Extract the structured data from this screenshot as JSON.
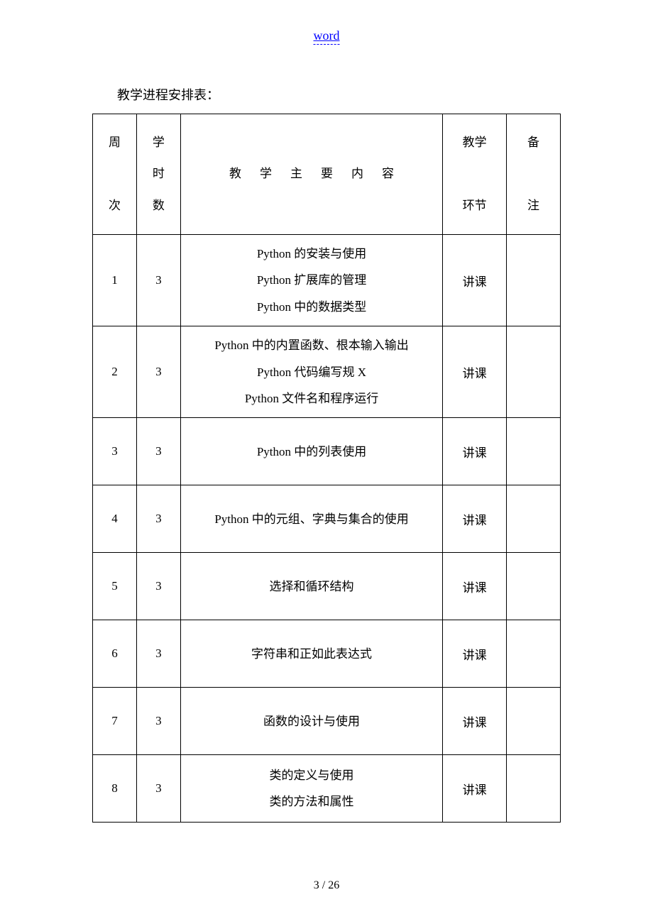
{
  "header": {
    "link_text": "word"
  },
  "intro": "教学进程安排表：",
  "table": {
    "headers": {
      "col1_line1": "周",
      "col1_line2": "次",
      "col2_line1": "学",
      "col2_line2": "时",
      "col2_line3": "数",
      "col3": "教学主要内容",
      "col4_line1": "教学",
      "col4_line2": "环节",
      "col5_line1": "备",
      "col5_line2": "注"
    },
    "rows": [
      {
        "week": "1",
        "hours": "3",
        "lines": [
          "Python 的安装与使用",
          "Python 扩展库的管理",
          "Python 中的数据类型"
        ],
        "type": "讲课",
        "note": ""
      },
      {
        "week": "2",
        "hours": "3",
        "lines": [
          "Python 中的内置函数、根本输入输出",
          "Python 代码编写规 X",
          "Python 文件名和程序运行"
        ],
        "type": "讲课",
        "note": ""
      },
      {
        "week": "3",
        "hours": "3",
        "lines": [
          "Python 中的列表使用"
        ],
        "type": "讲课",
        "note": ""
      },
      {
        "week": "4",
        "hours": "3",
        "lines": [
          "Python 中的元组、字典与集合的使用"
        ],
        "type": "讲课",
        "note": ""
      },
      {
        "week": "5",
        "hours": "3",
        "lines": [
          "选择和循环结构"
        ],
        "type": "讲课",
        "note": ""
      },
      {
        "week": "6",
        "hours": "3",
        "lines": [
          "字符串和正如此表达式"
        ],
        "type": "讲课",
        "note": ""
      },
      {
        "week": "7",
        "hours": "3",
        "lines": [
          "函数的设计与使用"
        ],
        "type": "讲课",
        "note": ""
      },
      {
        "week": "8",
        "hours": "3",
        "lines": [
          "类的定义与使用",
          "类的方法和属性"
        ],
        "type": "讲课",
        "note": ""
      }
    ]
  },
  "footer": {
    "page": "3 / 26"
  },
  "colors": {
    "link": "#0000ff",
    "text": "#000000",
    "border": "#000000",
    "background": "#ffffff"
  }
}
